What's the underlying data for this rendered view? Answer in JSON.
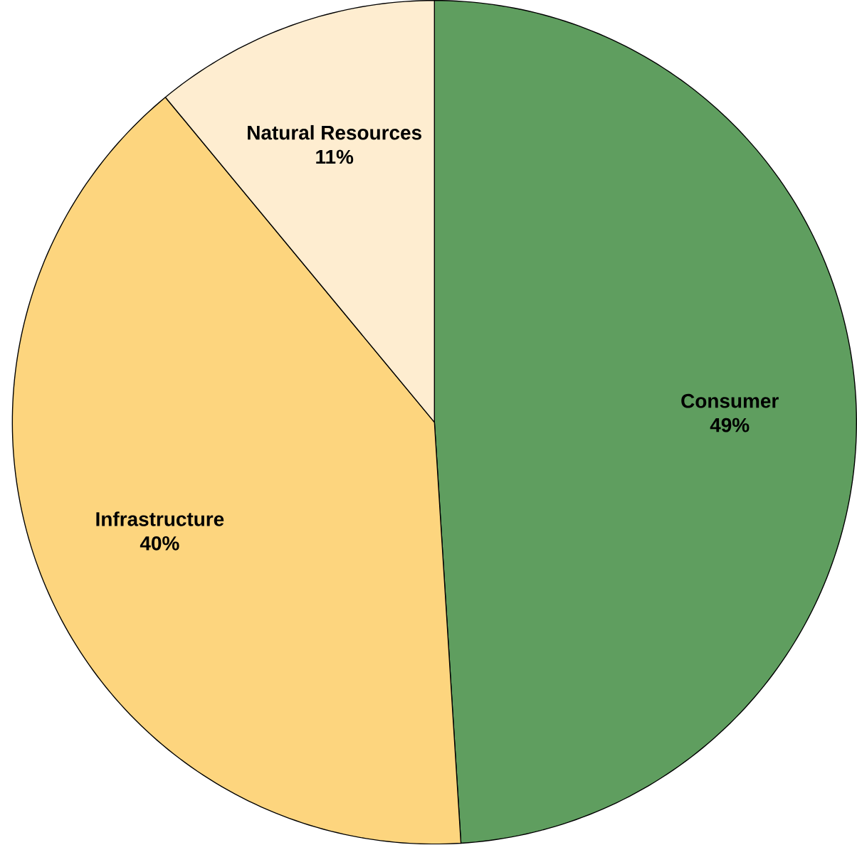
{
  "chart_data": {
    "type": "pie",
    "categories": [
      "Consumer",
      "Infrastructure",
      "Natural Resources"
    ],
    "values": [
      49,
      40,
      11
    ],
    "colors": [
      "#5f9e5f",
      "#fdd57e",
      "#feedd0"
    ],
    "value_labels": [
      "49%",
      "40%",
      "11%"
    ]
  }
}
